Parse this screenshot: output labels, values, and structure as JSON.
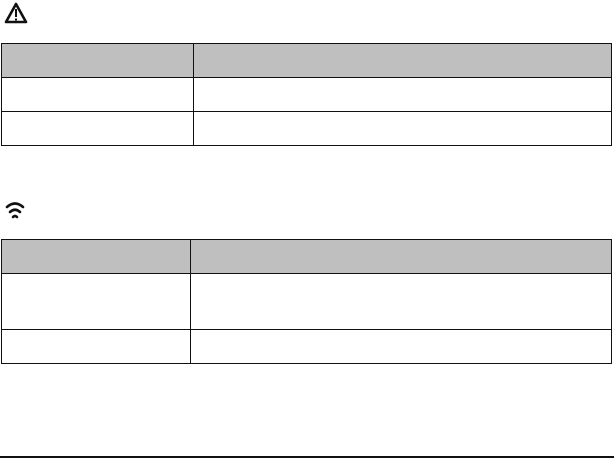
{
  "colors": {
    "header_fill": "#bfbfbf",
    "border": "#111111"
  },
  "section1": {
    "icon": "warning-triangle-icon",
    "table": {
      "headers": [
        "",
        ""
      ],
      "rows": [
        [
          "",
          ""
        ],
        [
          "",
          ""
        ]
      ]
    }
  },
  "section2": {
    "icon": "wireless-signal-icon",
    "table": {
      "headers": [
        "",
        ""
      ],
      "rows": [
        [
          "",
          ""
        ],
        [
          "",
          ""
        ]
      ]
    }
  }
}
